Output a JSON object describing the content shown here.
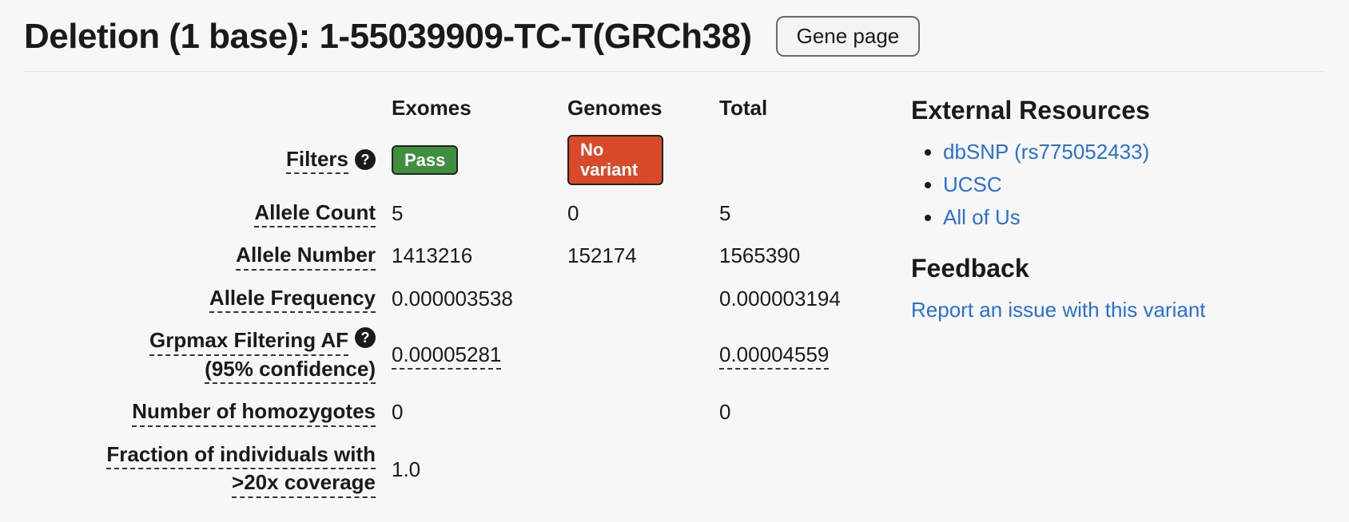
{
  "header": {
    "title": "Deletion (1 base): 1-55039909-TC-T(GRCh38)",
    "gene_page_button": "Gene page"
  },
  "stats": {
    "columns": {
      "exomes": "Exomes",
      "genomes": "Genomes",
      "total": "Total"
    },
    "rows": {
      "filters": {
        "label": "Filters",
        "help": true,
        "exomes_badge": "Pass",
        "exomes_badge_color": "#3f8f3f",
        "genomes_badge": "No variant",
        "genomes_badge_color": "#d84a2a",
        "total": ""
      },
      "allele_count": {
        "label": "Allele Count",
        "exomes": "5",
        "genomes": "0",
        "total": "5"
      },
      "allele_number": {
        "label": "Allele Number",
        "exomes": "1413216",
        "genomes": "152174",
        "total": "1565390"
      },
      "allele_frequency": {
        "label": "Allele Frequency",
        "exomes": "0.000003538",
        "genomes": "",
        "total": "0.000003194"
      },
      "grpmax": {
        "label_line1": "Grpmax Filtering AF",
        "label_line2": "(95% confidence)",
        "help": true,
        "exomes": "0.00005281",
        "genomes": "",
        "total": "0.00004559"
      },
      "homozygotes": {
        "label": "Number of homozygotes",
        "exomes": "0",
        "genomes": "",
        "total": "0"
      },
      "coverage": {
        "label_line1": "Fraction of individuals with",
        "label_line2": ">20x coverage",
        "exomes": "1.0",
        "genomes": "",
        "total": ""
      }
    }
  },
  "sidebar": {
    "external_resources_title": "External Resources",
    "links": {
      "dbsnp": "dbSNP (rs775052433)",
      "ucsc": "UCSC",
      "allofus": "All of Us"
    },
    "feedback_title": "Feedback",
    "feedback_link": "Report an issue with this variant"
  },
  "colors": {
    "link": "#2a6fd6",
    "badge_pass": "#3f8f3f",
    "badge_novariant": "#d84a2a",
    "background": "#f7f7f7"
  }
}
